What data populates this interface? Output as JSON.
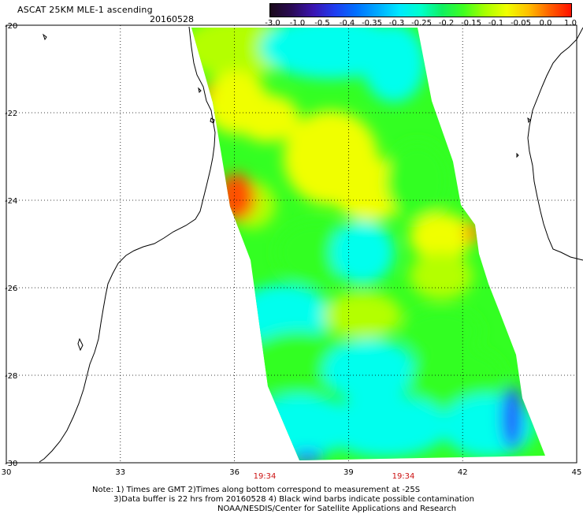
{
  "header": {
    "title": "ASCAT 25KM MLE-1 ascending",
    "date": "20160528"
  },
  "colorbar": {
    "tick_labels": [
      "-3.0",
      "-1.0",
      "-0.5",
      "-0.4",
      "-0.35",
      "-0.3",
      "-0.25",
      "-0.2",
      "-0.15",
      "-0.1",
      "-0.05",
      "0.0",
      "1.0"
    ],
    "gradient_colors": [
      "#1a0a1a",
      "#2a0a55",
      "#3a14b0",
      "#1f3cf0",
      "#0070ff",
      "#00aaff",
      "#00e8ff",
      "#00ffcc",
      "#10f060",
      "#40ff20",
      "#a8ff00",
      "#f0ff00",
      "#ffc000",
      "#ff6000",
      "#ff1000"
    ]
  },
  "map": {
    "lon_labels": [
      "30",
      "33",
      "36",
      "39",
      "42",
      "45"
    ],
    "lat_labels": [
      "-20",
      "-22",
      "-24",
      "-26",
      "-28",
      "-30"
    ],
    "lon_range": [
      30,
      45
    ],
    "lat_range": [
      -30,
      -20
    ],
    "grid": "dotted",
    "swath_colors": {
      "blue": "#1a66ff",
      "cyan": "#00ffee",
      "green": "#33ff22",
      "lime": "#b4ff00",
      "yellow": "#f0ff00",
      "orange": "#ff8800",
      "red": "#ff5000"
    }
  },
  "times": [
    "19:34",
    "19:34"
  ],
  "note": {
    "line1": "Note: 1) Times are GMT 2)Times along bottom correspond to measurement at -25S",
    "line2": "3)Data buffer is 22 hrs from 20160528 4) Black wind barbs indicate possible contamination",
    "line3": "NOAA/NESDIS/Center for Satellite Applications and Research"
  }
}
